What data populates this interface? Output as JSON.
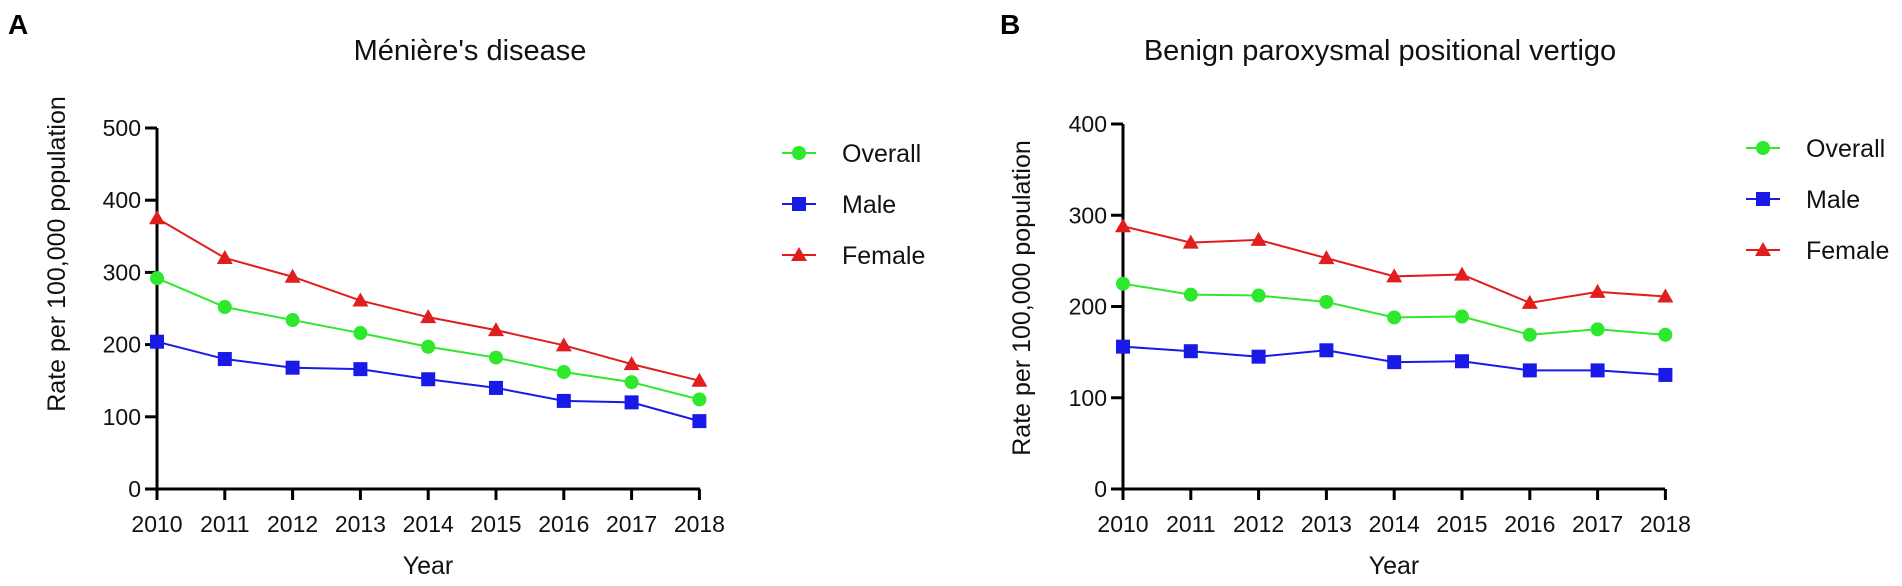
{
  "chart_data": [
    {
      "panel": "A",
      "type": "line",
      "title": "Ménière's disease",
      "xlabel": "Year",
      "ylabel": "Rate per 100,000 population",
      "ylim": [
        0,
        500
      ],
      "yticks": [
        "0",
        "100",
        "200",
        "300",
        "400",
        "500"
      ],
      "categories": [
        "2010",
        "2011",
        "2012",
        "2013",
        "2014",
        "2015",
        "2016",
        "2017",
        "2018"
      ],
      "legend_position": "top-right",
      "series": [
        {
          "name": "Overall",
          "color": "#2ee82e",
          "marker": "circle",
          "values": [
            292,
            252,
            234,
            216,
            197,
            182,
            162,
            148,
            124
          ]
        },
        {
          "name": "Male",
          "color": "#1a1ae6",
          "marker": "square",
          "values": [
            204,
            180,
            168,
            166,
            152,
            140,
            122,
            120,
            94
          ]
        },
        {
          "name": "Female",
          "color": "#e01e1e",
          "marker": "triangle",
          "values": [
            375,
            320,
            294,
            261,
            238,
            220,
            199,
            173,
            150
          ]
        }
      ]
    },
    {
      "panel": "B",
      "type": "line",
      "title": "Benign paroxysmal positional vertigo",
      "xlabel": "Year",
      "ylabel": "Rate per 100,000 population",
      "ylim": [
        0,
        400
      ],
      "yticks": [
        "0",
        "100",
        "200",
        "300",
        "400"
      ],
      "categories": [
        "2010",
        "2011",
        "2012",
        "2013",
        "2014",
        "2015",
        "2016",
        "2017",
        "2018"
      ],
      "legend_position": "top-right",
      "series": [
        {
          "name": "Overall",
          "color": "#2ee82e",
          "marker": "circle",
          "values": [
            225,
            213,
            212,
            205,
            188,
            189,
            169,
            175,
            169
          ]
        },
        {
          "name": "Male",
          "color": "#1a1ae6",
          "marker": "square",
          "values": [
            156,
            151,
            145,
            152,
            139,
            140,
            130,
            130,
            125
          ]
        },
        {
          "name": "Female",
          "color": "#e01e1e",
          "marker": "triangle",
          "values": [
            288,
            270,
            273,
            253,
            233,
            235,
            204,
            216,
            211
          ]
        }
      ]
    }
  ]
}
